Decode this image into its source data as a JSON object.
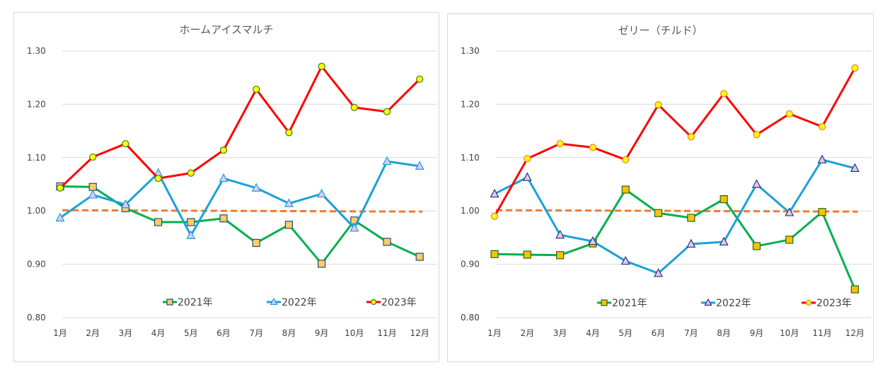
{
  "chart_data": [
    {
      "type": "line",
      "title": "ホームアイスマルチ",
      "xlabel": "",
      "ylabel": "",
      "categories": [
        "1月",
        "2月",
        "3月",
        "4月",
        "5月",
        "6月",
        "7月",
        "8月",
        "9月",
        "10月",
        "11月",
        "12月"
      ],
      "ylim": [
        0.8,
        1.3
      ],
      "yticks": [
        "0.80",
        "0.90",
        "1.00",
        "1.10",
        "1.20",
        "1.30"
      ],
      "grid": true,
      "legend_position": "bottom",
      "reference_line": {
        "value": 1.0,
        "color": "#ED7D31",
        "style": "dashed"
      },
      "series": [
        {
          "name": "2021年",
          "color": "#00B050",
          "marker": "square",
          "marker_fill": "#FFCC66",
          "marker_stroke": "#1F4E79",
          "values": [
            1.046,
            1.045,
            1.005,
            0.979,
            0.979,
            0.986,
            0.94,
            0.974,
            0.901,
            0.982,
            0.942,
            0.914
          ]
        },
        {
          "name": "2022年",
          "color": "#1BA1D9",
          "marker": "triangle",
          "marker_fill": "#E6C8F0",
          "marker_stroke": "#1BA1D9",
          "values": [
            0.987,
            1.03,
            1.012,
            1.071,
            0.954,
            1.061,
            1.043,
            1.014,
            1.032,
            0.968,
            1.093,
            1.084
          ]
        },
        {
          "name": "2023年",
          "color": "#FF0000",
          "marker": "circle",
          "marker_fill": "#FFFF00",
          "marker_stroke": "#3A7D22",
          "values": [
            1.043,
            1.101,
            1.126,
            1.061,
            1.071,
            1.114,
            1.228,
            1.147,
            1.271,
            1.194,
            1.186,
            1.247
          ]
        }
      ]
    },
    {
      "type": "line",
      "title": "ゼリー（チルド）",
      "xlabel": "",
      "ylabel": "",
      "categories": [
        "1月",
        "2月",
        "3月",
        "4月",
        "5月",
        "6月",
        "7月",
        "8月",
        "9月",
        "10月",
        "11月",
        "12月"
      ],
      "ylim": [
        0.8,
        1.3
      ],
      "yticks": [
        "0.80",
        "0.90",
        "1.00",
        "1.10",
        "1.20",
        "1.30"
      ],
      "grid": true,
      "legend_position": "bottom",
      "reference_line": {
        "value": 1.0,
        "color": "#ED7D31",
        "style": "dashed"
      },
      "series": [
        {
          "name": "2021年",
          "color": "#00B050",
          "marker": "square",
          "marker_fill": "#FFC000",
          "marker_stroke": "#1E6B1E",
          "values": [
            0.919,
            0.918,
            0.917,
            0.939,
            1.04,
            0.996,
            0.987,
            1.022,
            0.934,
            0.946,
            0.998,
            0.853
          ]
        },
        {
          "name": "2022年",
          "color": "#1BA1D9",
          "marker": "triangle",
          "marker_fill": "#E6C8F0",
          "marker_stroke": "#1F3A7A",
          "values": [
            1.032,
            1.063,
            0.955,
            0.943,
            0.906,
            0.883,
            0.938,
            0.942,
            1.05,
            0.997,
            1.096,
            1.08
          ]
        },
        {
          "name": "2023年",
          "color": "#FF0000",
          "marker": "circle",
          "marker_fill": "#FFFF00",
          "marker_stroke": "#ED7D31",
          "values": [
            0.99,
            1.098,
            1.126,
            1.119,
            1.096,
            1.199,
            1.139,
            1.22,
            1.143,
            1.182,
            1.158,
            1.268
          ]
        }
      ]
    }
  ]
}
